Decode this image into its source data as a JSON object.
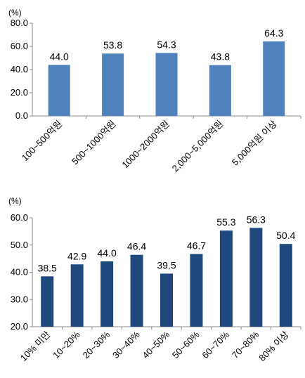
{
  "chart_data": [
    {
      "type": "bar",
      "unit": "(%)",
      "categories": [
        "100~500억원",
        "500~1000억원",
        "1000~2000억원",
        "2,000~5,000억원",
        "5,000억원 이상"
      ],
      "values": [
        44.0,
        53.8,
        54.3,
        43.8,
        64.3
      ],
      "value_labels": [
        "44.0",
        "53.8",
        "54.3",
        "43.8",
        "64.3"
      ],
      "yticks": [
        "0.0",
        "20.0",
        "40.0",
        "60.0",
        "80.0"
      ],
      "ylim": [
        0,
        80
      ],
      "grid": false,
      "color": "#4f81bd"
    },
    {
      "type": "bar",
      "unit": "(%)",
      "categories": [
        "10% 미만",
        "10~20%",
        "20~30%",
        "30~40%",
        "40~50%",
        "50~60%",
        "60~70%",
        "70~80%",
        "80% 이상"
      ],
      "values": [
        38.5,
        42.9,
        44.0,
        46.4,
        39.5,
        46.7,
        55.3,
        56.3,
        50.4
      ],
      "value_labels": [
        "38.5",
        "42.9",
        "44.0",
        "46.4",
        "39.5",
        "46.7",
        "55.3",
        "56.3",
        "50.4"
      ],
      "yticks": [
        "20.0",
        "30.0",
        "40.0",
        "50.0",
        "60.0"
      ],
      "ylim": [
        20,
        60
      ],
      "grid": false,
      "color": "#1f497d"
    }
  ]
}
